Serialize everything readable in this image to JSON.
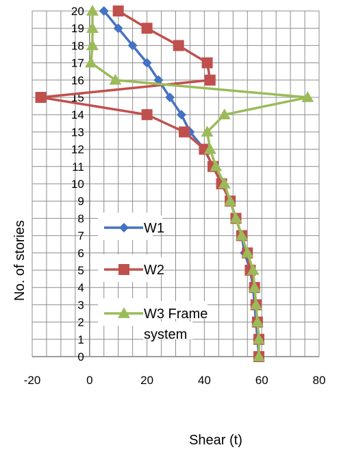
{
  "chart_data": {
    "type": "line",
    "xlabel": "Shear (t)",
    "ylabel": "No. of stories",
    "xlim": [
      -20,
      80
    ],
    "ylim": [
      0,
      20
    ],
    "x_ticks": [
      "-20",
      "0",
      "20",
      "40",
      "60",
      "80"
    ],
    "y_ticks": [
      "0",
      "1",
      "2",
      "3",
      "4",
      "5",
      "6",
      "7",
      "8",
      "9",
      "10",
      "11",
      "12",
      "13",
      "14",
      "15",
      "16",
      "17",
      "18",
      "19",
      "20"
    ],
    "grid": true,
    "legend_position": "left-middle",
    "series": [
      {
        "name": "W1",
        "color": "#4472C4",
        "marker": "diamond",
        "points": [
          [
            59,
            0
          ],
          [
            58.5,
            1
          ],
          [
            58,
            2
          ],
          [
            57.5,
            3
          ],
          [
            57,
            4
          ],
          [
            56,
            5
          ],
          [
            54,
            6
          ],
          [
            53,
            7
          ],
          [
            51,
            8
          ],
          [
            49,
            9
          ],
          [
            46,
            10
          ],
          [
            43,
            11
          ],
          [
            40,
            12
          ],
          [
            35,
            13
          ],
          [
            32,
            14
          ],
          [
            28,
            15
          ],
          [
            24,
            16
          ],
          [
            20,
            17
          ],
          [
            15,
            18
          ],
          [
            10,
            19
          ],
          [
            5,
            20
          ]
        ]
      },
      {
        "name": "W2",
        "color": "#C0504D",
        "marker": "square",
        "points": [
          [
            59,
            0
          ],
          [
            59,
            1
          ],
          [
            58.5,
            2
          ],
          [
            58,
            3
          ],
          [
            57.5,
            4
          ],
          [
            56,
            5
          ],
          [
            55,
            6
          ],
          [
            53,
            7
          ],
          [
            51,
            8
          ],
          [
            49,
            9
          ],
          [
            46,
            10
          ],
          [
            43,
            11
          ],
          [
            40,
            12
          ],
          [
            33,
            13
          ],
          [
            20,
            14
          ],
          [
            -17,
            15
          ],
          [
            42,
            16
          ],
          [
            41,
            17
          ],
          [
            31,
            18
          ],
          [
            20,
            19
          ],
          [
            10,
            20
          ]
        ]
      },
      {
        "name": "W3 Frame system",
        "color": "#9BBB59",
        "marker": "triangle",
        "points": [
          [
            59,
            0
          ],
          [
            59,
            1
          ],
          [
            58.5,
            2
          ],
          [
            58,
            3
          ],
          [
            57.5,
            4
          ],
          [
            57,
            5
          ],
          [
            55,
            6
          ],
          [
            53,
            7
          ],
          [
            51,
            8
          ],
          [
            49,
            9
          ],
          [
            47,
            10
          ],
          [
            44,
            11
          ],
          [
            42,
            12
          ],
          [
            41,
            13
          ],
          [
            47,
            14
          ],
          [
            76,
            15
          ],
          [
            9,
            16
          ],
          [
            0.5,
            17
          ],
          [
            1,
            18
          ],
          [
            1,
            19
          ],
          [
            1,
            20
          ]
        ]
      }
    ],
    "legend": [
      {
        "series": 0,
        "lines": [
          "W1"
        ]
      },
      {
        "series": 1,
        "lines": [
          "W2"
        ]
      },
      {
        "series": 2,
        "lines": [
          "W3 Frame",
          "system"
        ]
      }
    ]
  }
}
